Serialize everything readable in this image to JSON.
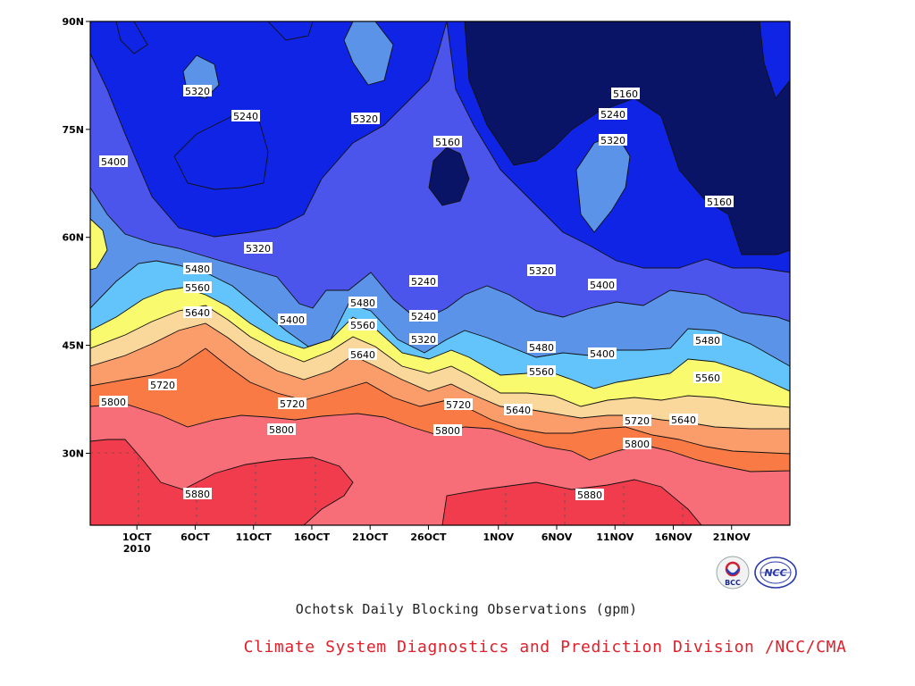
{
  "chart_data": {
    "type": "heatmap",
    "title": "Ochotsk Daily Blocking Observations (gpm)",
    "credit": "Climate System Diagnostics and Prediction Division /NCC/CMA",
    "variable_unit": "gpm",
    "y_axis": {
      "ticks": [
        "90N",
        "75N",
        "60N",
        "45N",
        "30N"
      ],
      "ylim": [
        20,
        90
      ]
    },
    "x_axis": {
      "ticks": [
        "1OCT",
        "6OCT",
        "11OCT",
        "16OCT",
        "21OCT",
        "26OCT",
        "1NOV",
        "6NOV",
        "11NOV",
        "16NOV",
        "21NOV"
      ],
      "year_label": "2010",
      "start": "2010-09-27",
      "end": "2010-11-26"
    },
    "contour_levels": [
      5160,
      5240,
      5320,
      5400,
      5480,
      5560,
      5640,
      5720,
      5800,
      5880
    ],
    "level_colors": [
      "#0a1466",
      "#1024e6",
      "#4b55eb",
      "#5a93e8",
      "#62c4fa",
      "#fafa6e",
      "#fad89c",
      "#fa9d6b",
      "#fa7a46",
      "#f86e78",
      "#f03c4c"
    ],
    "grid": true,
    "contour_labels": [
      {
        "text": "5320"
      },
      {
        "text": "5240"
      },
      {
        "text": "5320"
      },
      {
        "text": "5400"
      },
      {
        "text": "5160"
      },
      {
        "text": "5160"
      },
      {
        "text": "5240"
      },
      {
        "text": "5320"
      },
      {
        "text": "5160"
      },
      {
        "text": "5320"
      },
      {
        "text": "5480"
      },
      {
        "text": "5560"
      },
      {
        "text": "5640"
      },
      {
        "text": "5400"
      },
      {
        "text": "5480"
      },
      {
        "text": "5560"
      },
      {
        "text": "5640"
      },
      {
        "text": "5240"
      },
      {
        "text": "5320"
      },
      {
        "text": "5400"
      },
      {
        "text": "5240"
      },
      {
        "text": "5320"
      },
      {
        "text": "5480"
      },
      {
        "text": "5560"
      },
      {
        "text": "5400"
      },
      {
        "text": "5480"
      },
      {
        "text": "5560"
      },
      {
        "text": "5720"
      },
      {
        "text": "5800"
      },
      {
        "text": "5720"
      },
      {
        "text": "5800"
      },
      {
        "text": "5720"
      },
      {
        "text": "5640"
      },
      {
        "text": "5800"
      },
      {
        "text": "5720"
      },
      {
        "text": "5640"
      },
      {
        "text": "5800"
      },
      {
        "text": "5880"
      },
      {
        "text": "5880"
      }
    ]
  },
  "logos": {
    "left": "BCC",
    "right": "NCC"
  }
}
